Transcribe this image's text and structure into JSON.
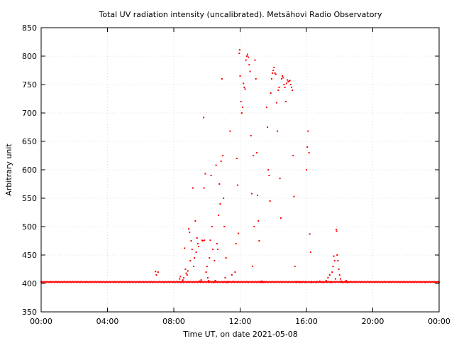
{
  "chart_data": {
    "type": "scatter",
    "title": "Total UV radiation intensity (uncalibrated). Metsähovi Radio Observatory",
    "xlabel": "Time UT, on date 2021-05-08",
    "ylabel": "Arbitrary unit",
    "xlim": [
      0,
      24
    ],
    "ylim": [
      350,
      850
    ],
    "x_ticks": [
      {
        "value": 0,
        "label": "00:00"
      },
      {
        "value": 4,
        "label": "04:00"
      },
      {
        "value": 8,
        "label": "08:00"
      },
      {
        "value": 12,
        "label": "12:00"
      },
      {
        "value": 16,
        "label": "16:00"
      },
      {
        "value": 20,
        "label": "20:00"
      },
      {
        "value": 24,
        "label": "00:00"
      }
    ],
    "y_ticks": [
      350,
      400,
      450,
      500,
      550,
      600,
      650,
      700,
      750,
      800,
      850
    ],
    "grid": true,
    "series_color": "#ff0000",
    "baseline_value": 402,
    "series": [
      {
        "points": [
          [
            6.9,
            421
          ],
          [
            6.95,
            415
          ],
          [
            7.05,
            420
          ],
          [
            8.2,
            403
          ],
          [
            8.35,
            408
          ],
          [
            8.4,
            412
          ],
          [
            8.45,
            402
          ],
          [
            8.5,
            404
          ],
          [
            8.55,
            406
          ],
          [
            8.6,
            410
          ],
          [
            8.65,
            462
          ],
          [
            8.7,
            425
          ],
          [
            8.75,
            418
          ],
          [
            8.8,
            415
          ],
          [
            8.85,
            422
          ],
          [
            8.9,
            496
          ],
          [
            8.95,
            490
          ],
          [
            9.0,
            440
          ],
          [
            9.05,
            475
          ],
          [
            9.1,
            460
          ],
          [
            9.15,
            568
          ],
          [
            9.2,
            430
          ],
          [
            9.25,
            445
          ],
          [
            9.3,
            510
          ],
          [
            9.35,
            455
          ],
          [
            9.4,
            480
          ],
          [
            9.45,
            470
          ],
          [
            9.5,
            465
          ],
          [
            9.55,
            404
          ],
          [
            9.6,
            403
          ],
          [
            9.65,
            406
          ],
          [
            9.7,
            476
          ],
          [
            9.75,
            475
          ],
          [
            9.8,
            692
          ],
          [
            9.82,
            568
          ],
          [
            9.85,
            476
          ],
          [
            9.9,
            593
          ],
          [
            9.95,
            420
          ],
          [
            10.0,
            430
          ],
          [
            10.05,
            410
          ],
          [
            10.1,
            405
          ],
          [
            10.15,
            445
          ],
          [
            10.2,
            476
          ],
          [
            10.25,
            590
          ],
          [
            10.3,
            500
          ],
          [
            10.35,
            460
          ],
          [
            10.4,
            402
          ],
          [
            10.45,
            440
          ],
          [
            10.5,
            405
          ],
          [
            10.55,
            608
          ],
          [
            10.6,
            470
          ],
          [
            10.65,
            460
          ],
          [
            10.7,
            520
          ],
          [
            10.75,
            575
          ],
          [
            10.8,
            540
          ],
          [
            10.85,
            615
          ],
          [
            10.9,
            760
          ],
          [
            10.95,
            625
          ],
          [
            11.0,
            550
          ],
          [
            11.05,
            500
          ],
          [
            11.1,
            410
          ],
          [
            11.15,
            445
          ],
          [
            11.2,
            402
          ],
          [
            11.3,
            403
          ],
          [
            11.4,
            668
          ],
          [
            11.5,
            415
          ],
          [
            11.6,
            403
          ],
          [
            11.7,
            420
          ],
          [
            11.75,
            470
          ],
          [
            11.8,
            620
          ],
          [
            11.85,
            573
          ],
          [
            11.9,
            488
          ],
          [
            11.95,
            805
          ],
          [
            11.97,
            811
          ],
          [
            12.0,
            765
          ],
          [
            12.05,
            720
          ],
          [
            12.1,
            700
          ],
          [
            12.15,
            710
          ],
          [
            12.2,
            752
          ],
          [
            12.25,
            745
          ],
          [
            12.3,
            742
          ],
          [
            12.35,
            793
          ],
          [
            12.4,
            800
          ],
          [
            12.45,
            803
          ],
          [
            12.5,
            798
          ],
          [
            12.55,
            785
          ],
          [
            12.6,
            773
          ],
          [
            12.65,
            660
          ],
          [
            12.7,
            558
          ],
          [
            12.75,
            430
          ],
          [
            12.8,
            625
          ],
          [
            12.85,
            500
          ],
          [
            12.9,
            793
          ],
          [
            12.95,
            760
          ],
          [
            13.0,
            630
          ],
          [
            13.05,
            555
          ],
          [
            13.1,
            510
          ],
          [
            13.15,
            475
          ],
          [
            13.2,
            403
          ],
          [
            13.25,
            402
          ],
          [
            13.3,
            404
          ],
          [
            13.4,
            402
          ],
          [
            13.5,
            403
          ],
          [
            13.6,
            710
          ],
          [
            13.65,
            675
          ],
          [
            13.7,
            600
          ],
          [
            13.75,
            590
          ],
          [
            13.8,
            545
          ],
          [
            13.85,
            735
          ],
          [
            13.9,
            760
          ],
          [
            13.95,
            770
          ],
          [
            14.0,
            775
          ],
          [
            14.05,
            780
          ],
          [
            14.1,
            770
          ],
          [
            14.15,
            768
          ],
          [
            14.2,
            718
          ],
          [
            14.25,
            668
          ],
          [
            14.3,
            740
          ],
          [
            14.35,
            745
          ],
          [
            14.4,
            585
          ],
          [
            14.45,
            515
          ],
          [
            14.5,
            760
          ],
          [
            14.55,
            765
          ],
          [
            14.6,
            762
          ],
          [
            14.65,
            750
          ],
          [
            14.7,
            745
          ],
          [
            14.75,
            720
          ],
          [
            14.8,
            752
          ],
          [
            14.85,
            758
          ],
          [
            14.9,
            755
          ],
          [
            14.95,
            756
          ],
          [
            15.0,
            757
          ],
          [
            15.05,
            750
          ],
          [
            15.1,
            745
          ],
          [
            15.15,
            740
          ],
          [
            15.2,
            625
          ],
          [
            15.25,
            553
          ],
          [
            15.3,
            430
          ],
          [
            15.35,
            403
          ],
          [
            15.4,
            402
          ],
          [
            15.5,
            403
          ],
          [
            15.6,
            402
          ],
          [
            15.7,
            402
          ],
          [
            15.8,
            403
          ],
          [
            15.9,
            402
          ],
          [
            16.0,
            600
          ],
          [
            16.05,
            640
          ],
          [
            16.1,
            668
          ],
          [
            16.15,
            630
          ],
          [
            16.2,
            487
          ],
          [
            16.25,
            455
          ],
          [
            16.3,
            402
          ],
          [
            16.6,
            402
          ],
          [
            16.8,
            404
          ],
          [
            17.0,
            402
          ],
          [
            17.2,
            405
          ],
          [
            17.3,
            410
          ],
          [
            17.4,
            415
          ],
          [
            17.5,
            402
          ],
          [
            17.55,
            420
          ],
          [
            17.6,
            430
          ],
          [
            17.65,
            448
          ],
          [
            17.7,
            440
          ],
          [
            17.75,
            408
          ],
          [
            17.8,
            495
          ],
          [
            17.82,
            492
          ],
          [
            17.85,
            450
          ],
          [
            17.9,
            440
          ],
          [
            17.95,
            425
          ],
          [
            18.0,
            415
          ],
          [
            18.05,
            408
          ],
          [
            18.1,
            404
          ],
          [
            18.2,
            402
          ],
          [
            18.3,
            403
          ],
          [
            18.4,
            405
          ],
          [
            18.5,
            402
          ]
        ]
      }
    ]
  }
}
